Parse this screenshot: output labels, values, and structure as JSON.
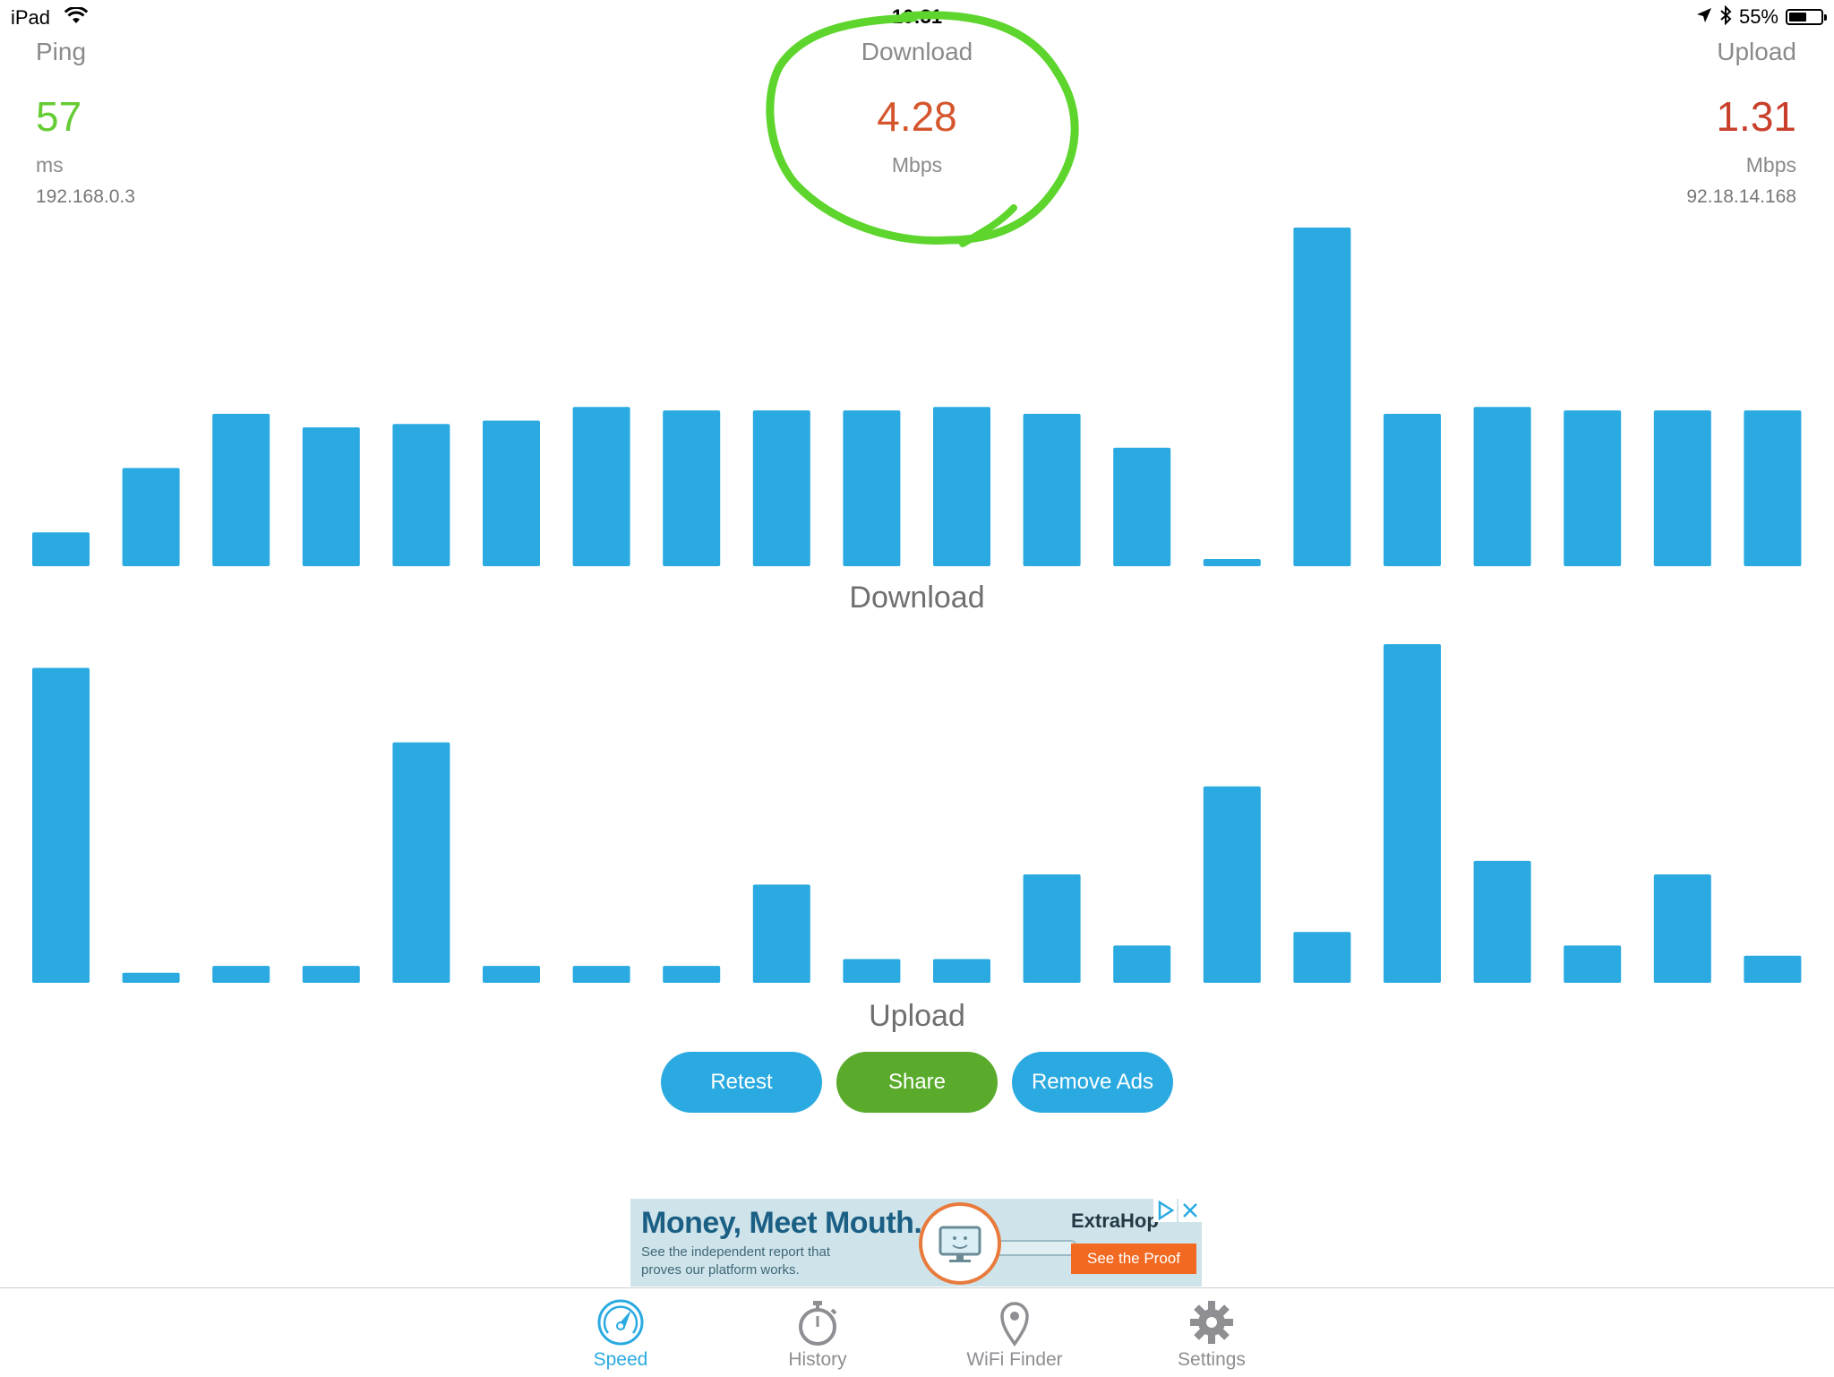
{
  "status_bar": {
    "device": "iPad",
    "time": "10:31",
    "battery": "55%",
    "battery_level": 0.55
  },
  "ping": {
    "label": "Ping",
    "value": "57",
    "unit": "ms",
    "ip": "192.168.0.3",
    "color": "#66cc33"
  },
  "download": {
    "label": "Download",
    "value": "4.28",
    "unit": "Mbps",
    "color": "#d5552c"
  },
  "upload": {
    "label": "Upload",
    "value": "1.31",
    "unit": "Mbps",
    "ip": "92.18.14.168",
    "color": "#c8402c"
  },
  "annotation_color": "#5dd52c",
  "chart_data": [
    {
      "type": "bar",
      "title": "Download",
      "color": "#2aaae1",
      "values": [
        0.1,
        0.29,
        0.45,
        0.41,
        0.42,
        0.43,
        0.47,
        0.46,
        0.46,
        0.46,
        0.47,
        0.45,
        0.35,
        0.02,
        1.0,
        0.45,
        0.47,
        0.46,
        0.46,
        0.46
      ]
    },
    {
      "type": "bar",
      "title": "Upload",
      "color": "#2aaae1",
      "values": [
        0.93,
        0.03,
        0.05,
        0.05,
        0.71,
        0.05,
        0.05,
        0.05,
        0.29,
        0.07,
        0.07,
        0.32,
        0.11,
        0.58,
        0.15,
        1.0,
        0.36,
        0.11,
        0.32,
        0.08
      ]
    }
  ],
  "buttons": {
    "retest": "Retest",
    "share": "Share",
    "remove_ads": "Remove Ads"
  },
  "ad": {
    "headline": "Money, Meet Mouth.",
    "body": "See the independent report that proves our platform works.",
    "brand": "ExtraHop",
    "cta": "See the Proof"
  },
  "tabs": [
    {
      "label": "Speed",
      "icon": "speedometer-icon",
      "active": true
    },
    {
      "label": "History",
      "icon": "stopwatch-icon",
      "active": false
    },
    {
      "label": "WiFi Finder",
      "icon": "map-pin-icon",
      "active": false
    },
    {
      "label": "Settings",
      "icon": "gear-icon",
      "active": false
    }
  ],
  "colors": {
    "accent": "#2aaae1",
    "share_green": "#5aab2c",
    "tab_inactive": "#8e8e93"
  }
}
